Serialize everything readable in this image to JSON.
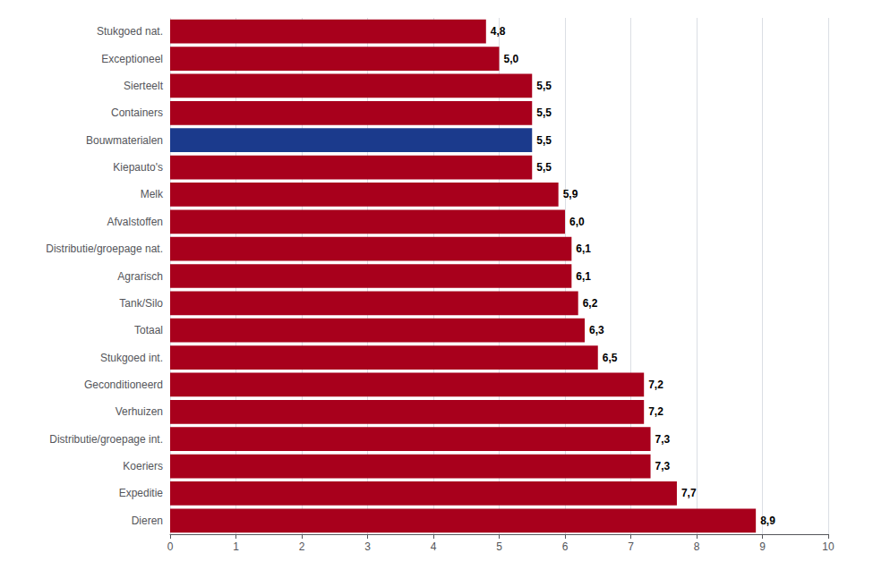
{
  "chart_data": {
    "type": "bar",
    "orientation": "horizontal",
    "categories": [
      "Dieren",
      "Expeditie",
      "Koeriers",
      "Distributie/groepage int.",
      "Verhuizen",
      "Geconditioneerd",
      "Stukgoed int.",
      "Totaal",
      "Tank/Silo",
      "Agrarisch",
      "Distributie/groepage nat.",
      "Afvalstoffen",
      "Melk",
      "Kiepauto's",
      "Bouwmaterialen",
      "Containers",
      "Sierteelt",
      "Exceptioneel",
      "Stukgoed nat."
    ],
    "values": [
      8.9,
      7.7,
      7.3,
      7.3,
      7.2,
      7.2,
      6.5,
      6.3,
      6.2,
      6.1,
      6.1,
      6.0,
      5.9,
      5.5,
      5.5,
      5.5,
      5.5,
      5.0,
      4.8
    ],
    "value_labels": [
      "8,9",
      "7,7",
      "7,3",
      "7,3",
      "7,2",
      "7,2",
      "6,5",
      "6,3",
      "6,2",
      "6,1",
      "6,1",
      "6,0",
      "5,9",
      "5,5",
      "5,5",
      "5,5",
      "5,5",
      "5,0",
      "4,8"
    ],
    "colors": [
      "#A8001C",
      "#A8001C",
      "#A8001C",
      "#A8001C",
      "#A8001C",
      "#A8001C",
      "#A8001C",
      "#A8001C",
      "#A8001C",
      "#A8001C",
      "#A8001C",
      "#A8001C",
      "#A8001C",
      "#A8001C",
      "#1B3A8C",
      "#A8001C",
      "#A8001C",
      "#A8001C",
      "#A8001C"
    ],
    "xlim": [
      0,
      10
    ],
    "xticks": [
      0,
      1,
      2,
      3,
      4,
      5,
      6,
      7,
      8,
      9,
      10
    ],
    "grid": true,
    "data_labels": true
  }
}
